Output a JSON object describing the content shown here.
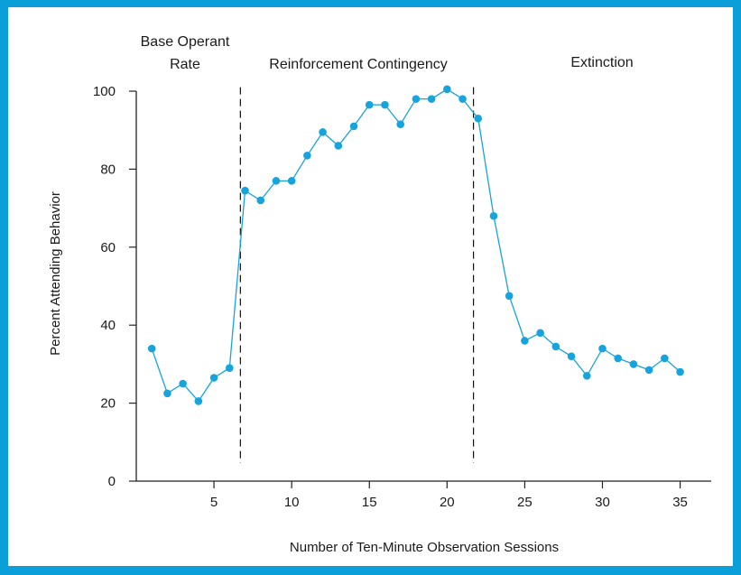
{
  "colors": {
    "border": "#0a9fd9",
    "series": "#17a3dc",
    "axis": "#222222"
  },
  "chart_data": {
    "type": "line",
    "title": "",
    "xlabel": "Number of Ten-Minute Observation Sessions",
    "ylabel": "Percent Attending Behavior",
    "xlim": [
      0,
      37
    ],
    "ylim": [
      0,
      100
    ],
    "xticks": [
      5,
      10,
      15,
      20,
      25,
      30,
      35
    ],
    "yticks": [
      0,
      20,
      40,
      60,
      80,
      100
    ],
    "grid": false,
    "phase_lines": [
      6.7,
      21.7
    ],
    "phases": [
      {
        "label_line1": "Base Operant",
        "label_line2": "Rate"
      },
      {
        "label_line1": "Reinforcement Contingency",
        "label_line2": ""
      },
      {
        "label_line1": "Extinction",
        "label_line2": ""
      }
    ],
    "series": [
      {
        "x": [
          1,
          2,
          3,
          4,
          5,
          6,
          7,
          8,
          9,
          10,
          11,
          12,
          13,
          14,
          15,
          16,
          17,
          18,
          19,
          20,
          21,
          22,
          23,
          24,
          25,
          26,
          27,
          28,
          29,
          30,
          31,
          32,
          33,
          34,
          35
        ],
        "values": [
          34,
          22.5,
          25,
          20.5,
          26.5,
          29,
          74.5,
          72,
          77,
          77,
          83.5,
          89.5,
          86,
          91,
          96.5,
          96.5,
          91.5,
          98,
          98,
          100.5,
          98,
          93,
          68,
          47.5,
          36,
          38,
          34.5,
          32,
          27,
          34,
          31.5,
          30,
          28.5,
          31.5,
          28
        ]
      }
    ]
  }
}
